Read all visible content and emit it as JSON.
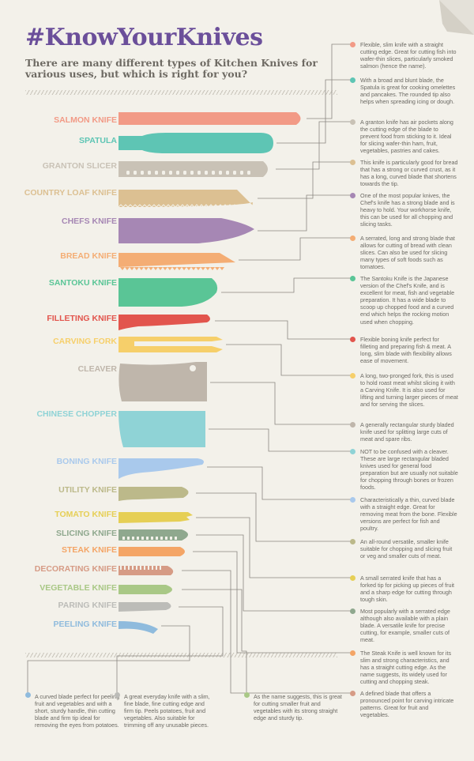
{
  "header": {
    "title": "#KnowYourKnives",
    "subtitle": "There are many different types of Kitchen Knives for various uses, but which is right for you?"
  },
  "colors": {
    "title": "#6b4f9a",
    "background": "#f3f1ea",
    "text": "#6b6963",
    "connector": "#8a8780"
  },
  "knives": [
    {
      "name": "SALMON KNIFE",
      "color": "#f29a86",
      "icon": "salmon-knife-icon"
    },
    {
      "name": "SPATULA",
      "color": "#5ec5b4",
      "icon": "spatula-icon"
    },
    {
      "name": "GRANTON SLICER",
      "color": "#c9c2b6",
      "icon": "granton-slicer-icon"
    },
    {
      "name": "COUNTRY LOAF KNIFE",
      "color": "#dcc092",
      "icon": "country-loaf-knife-icon"
    },
    {
      "name": "CHEFS KNIFE",
      "color": "#a687b4",
      "icon": "chefs-knife-icon"
    },
    {
      "name": "BREAD KNIFE",
      "color": "#f4ad74",
      "icon": "bread-knife-icon"
    },
    {
      "name": "SANTOKU KNIFE",
      "color": "#5ac596",
      "icon": "santoku-knife-icon"
    },
    {
      "name": "FILLETING KNIFE",
      "color": "#e2554d",
      "icon": "filleting-knife-icon"
    },
    {
      "name": "CARVING FORK",
      "color": "#f6cf6a",
      "icon": "carving-fork-icon"
    },
    {
      "name": "CLEAVER",
      "color": "#bfb6ab",
      "icon": "cleaver-icon"
    },
    {
      "name": "CHINESE CHOPPER",
      "color": "#8fd3d6",
      "icon": "chinese-chopper-icon"
    },
    {
      "name": "BONING KNIFE",
      "color": "#a9c9ec",
      "icon": "boning-knife-icon"
    },
    {
      "name": "UTILITY KNIFE",
      "color": "#bcb98a",
      "icon": "utility-knife-icon"
    },
    {
      "name": "TOMATO KNIFE",
      "color": "#e6cf55",
      "icon": "tomato-knife-icon"
    },
    {
      "name": "SLICING KNIFE",
      "color": "#8fa88e",
      "icon": "slicing-knife-icon"
    },
    {
      "name": "STEAK KNIFE",
      "color": "#f4a566",
      "icon": "steak-knife-icon"
    },
    {
      "name": "DECORATING KNIFE",
      "color": "#d69b85",
      "icon": "decorating-knife-icon"
    },
    {
      "name": "VEGETABLE KNIFE",
      "color": "#a9c886",
      "icon": "vegetable-knife-icon"
    },
    {
      "name": "PARING KNIFE",
      "color": "#bcbcb8",
      "icon": "paring-knife-icon"
    },
    {
      "name": "PEELING KNIFE",
      "color": "#8fbbdd",
      "icon": "peeling-knife-icon"
    }
  ],
  "descriptions": [
    {
      "text": "Flexible, slim knife with a straight cutting edge. Great for cutting fish into wafer-thin slices, particularly smoked salmon (hence the name).",
      "color": "#f29a86"
    },
    {
      "text": "With a broad and blunt blade, the Spatula is great for cooking omelettes and pancakes. The rounded tip also helps when spreading icing or dough.",
      "color": "#5ec5b4"
    },
    {
      "text": "A granton knife has air pockets along the cutting edge of the blade to prevent food from sticking to it. Ideal for slicing wafer-thin ham, fruit, vegetables, pastries and cakes.",
      "color": "#c9c2b6"
    },
    {
      "text": "This knife is particularly good for bread that has a strong or curved crust, as it has a long, curved blade that shortens towards the tip.",
      "color": "#dcc092"
    },
    {
      "text": "One of the most popular knives, the Chef's knife has a strong blade and is heavy to hold. Your workhorse knife, this can be used for all chopping and slicing tasks.",
      "color": "#a687b4"
    },
    {
      "text": "A serrated, long and strong blade that allows for cutting of bread with clean slices. Can also be used for slicing many types of soft foods such as tomatoes.",
      "color": "#f4ad74"
    },
    {
      "text": "The Santoku Knife is the Japanese version of the Chef's Knife, and is excellent for meat, fish and vegetable preparation. It has a wide blade to scoop up chopped food and a curved end which helps the rocking motion used when chopping.",
      "color": "#5ac596"
    },
    {
      "text": "Flexible boning knife perfect for filleting and preparing fish & meat. A long, slim blade with flexibility allows ease of movement.",
      "color": "#e2554d"
    },
    {
      "text": "A long, two-pronged fork, this is used to hold roast meat whilst slicing it with a Carving Knife. It is also used for lifting and turning larger pieces of meat and for serving the slices.",
      "color": "#f6cf6a"
    },
    {
      "text": "A generally rectangular sturdy bladed knife used for splitting large cuts of meat and spare ribs.",
      "color": "#bfb6ab"
    },
    {
      "text": "NOT to be confused with a cleaver. These are large rectangular bladed knives used for general food preparation but are usually not suitable for chopping through bones or frozen foods.",
      "color": "#8fd3d6"
    },
    {
      "text": "Characteristically a thin, curved blade with a straight edge. Great for removing meat from the bone. Flexible versions are perfect for fish and poultry.",
      "color": "#a9c9ec"
    },
    {
      "text": "An all-round versatile, smaller knife suitable for chopping and slicing fruit or veg and smaller cuts of meat.",
      "color": "#bcb98a"
    },
    {
      "text": "A small serrated knife that has a forked tip for picking up pieces of fruit and a sharp edge for cutting through tough skin.",
      "color": "#e6cf55"
    },
    {
      "text": "Most popularly with a serrated edge although also available with a plain blade. A versatile knife for precise cutting, for example, smaller cuts of meat.",
      "color": "#8fa88e"
    },
    {
      "text": "The Steak Knife is well known for its slim and strong characteristics, and has a straight cutting edge. As the name suggests, its widely used for cutting and chopping steak.",
      "color": "#f4a566"
    },
    {
      "text": "A defined blade that offers a pronounced point for carving intricate patterns. Great for fruit and vegetables.",
      "color": "#d69b85"
    }
  ],
  "bottom_descriptions": [
    {
      "text": "A curved blade perfect for peeling fruit and vegetables and with a short, sturdy handle, thin cutting blade and firm tip ideal for removing the eyes from potatoes.",
      "color": "#8fbbdd"
    },
    {
      "text": "A great everyday knife with a slim, fine blade, fine cutting edge and firm tip. Peels potatoes, fruit and vegetables. Also suitable for trimming off any unusable pieces.",
      "color": "#bcbcb8"
    },
    {
      "text": "As the name suggests, this is great for cutting smaller fruit and vegetables with its strong straight edge and sturdy tip.",
      "color": "#a9c886"
    }
  ]
}
